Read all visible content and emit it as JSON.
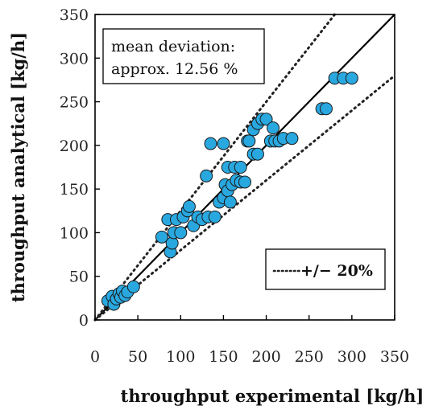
{
  "chart_data": {
    "type": "scatter",
    "title": "",
    "xlabel": "throughput experimental [kg/h]",
    "ylabel": "throughput analytical [kg/h]",
    "xlim": [
      0,
      350
    ],
    "ylim": [
      0,
      350
    ],
    "xticks": [
      0,
      50,
      100,
      150,
      200,
      250,
      300,
      350
    ],
    "yticks": [
      0,
      50,
      100,
      150,
      200,
      250,
      300,
      350
    ],
    "grid": false,
    "annotation": {
      "line1": "mean deviation:",
      "line2": "approx. 12.56 %"
    },
    "legend": {
      "label": "+/− 20%",
      "position": "bottom-right"
    },
    "reference_lines": {
      "identity_slope": 1.0,
      "upper_slope": 1.25,
      "lower_slope": 0.8
    },
    "marker_color": "#29a8e0",
    "series": [
      {
        "points": [
          [
            15,
            22
          ],
          [
            20,
            27
          ],
          [
            22,
            18
          ],
          [
            25,
            24
          ],
          [
            28,
            30
          ],
          [
            30,
            26
          ],
          [
            32,
            33
          ],
          [
            35,
            28
          ],
          [
            38,
            32
          ],
          [
            45,
            38
          ],
          [
            78,
            95
          ],
          [
            85,
            115
          ],
          [
            88,
            78
          ],
          [
            90,
            88
          ],
          [
            92,
            100
          ],
          [
            95,
            115
          ],
          [
            100,
            100
          ],
          [
            103,
            118
          ],
          [
            108,
            125
          ],
          [
            110,
            130
          ],
          [
            115,
            108
          ],
          [
            120,
            118
          ],
          [
            125,
            115
          ],
          [
            130,
            165
          ],
          [
            132,
            118
          ],
          [
            135,
            202
          ],
          [
            140,
            118
          ],
          [
            145,
            135
          ],
          [
            150,
            202
          ],
          [
            150,
            140
          ],
          [
            152,
            155
          ],
          [
            155,
            175
          ],
          [
            155,
            148
          ],
          [
            158,
            135
          ],
          [
            160,
            155
          ],
          [
            163,
            175
          ],
          [
            165,
            160
          ],
          [
            170,
            175
          ],
          [
            170,
            158
          ],
          [
            175,
            158
          ],
          [
            178,
            205
          ],
          [
            180,
            205
          ],
          [
            185,
            190
          ],
          [
            185,
            218
          ],
          [
            190,
            225
          ],
          [
            190,
            190
          ],
          [
            195,
            230
          ],
          [
            200,
            230
          ],
          [
            205,
            205
          ],
          [
            208,
            220
          ],
          [
            210,
            205
          ],
          [
            215,
            205
          ],
          [
            220,
            208
          ],
          [
            230,
            208
          ],
          [
            265,
            242
          ],
          [
            270,
            242
          ],
          [
            280,
            277
          ],
          [
            290,
            277
          ],
          [
            300,
            277
          ]
        ]
      }
    ]
  }
}
